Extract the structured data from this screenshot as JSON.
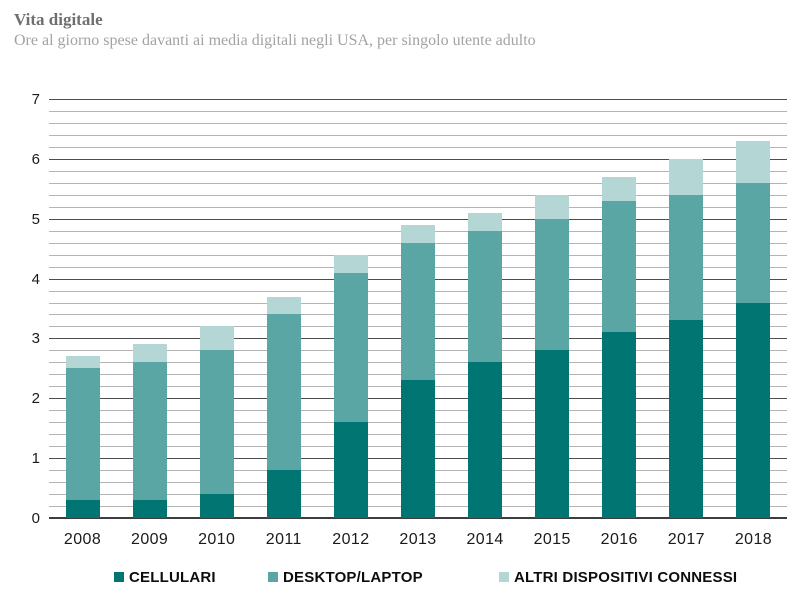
{
  "header": {
    "title": "Vita digitale",
    "subtitle": "Ore al giorno spese davanti ai media digitali negli USA, per singolo utente adulto"
  },
  "chart_data": {
    "type": "bar",
    "stacked": true,
    "title": "Vita digitale",
    "subtitle": "Ore al giorno spese davanti ai media digitali negli USA, per singolo utente adulto",
    "categories": [
      "2008",
      "2009",
      "2010",
      "2011",
      "2012",
      "2013",
      "2014",
      "2015",
      "2016",
      "2017",
      "2018"
    ],
    "series": [
      {
        "name": "CELLULARI",
        "color": "#007572",
        "values": [
          0.3,
          0.3,
          0.4,
          0.8,
          1.6,
          2.3,
          2.6,
          2.8,
          3.1,
          3.3,
          3.6
        ]
      },
      {
        "name": "DESKTOP/LAPTOP",
        "color": "#59a6a4",
        "values": [
          2.2,
          2.3,
          2.4,
          2.6,
          2.5,
          2.3,
          2.2,
          2.2,
          2.2,
          2.1,
          2.0
        ]
      },
      {
        "name": "ALTRI DISPOSITIVI CONNESSI",
        "color": "#b4d6d4",
        "values": [
          0.2,
          0.3,
          0.4,
          0.3,
          0.3,
          0.3,
          0.3,
          0.4,
          0.4,
          0.6,
          0.7
        ]
      }
    ],
    "totals": [
      2.7,
      2.9,
      3.2,
      3.7,
      4.4,
      4.9,
      5.1,
      5.4,
      5.7,
      6.0,
      6.3
    ],
    "xlabel": "",
    "ylabel": "",
    "ylim": [
      0,
      7
    ],
    "yticks": [
      "0",
      "1",
      "2",
      "3",
      "4",
      "5",
      "6",
      "7"
    ],
    "minor_grid_step": 0.2,
    "grid": true,
    "legend_position": "bottom"
  },
  "colors": {
    "grid_minor": "#b3b3b3",
    "grid_major": "#4d4d4d",
    "axis_line": "#3d3d3d",
    "title_text": "#6f6f6f",
    "subtitle_text": "#a3a3a3",
    "tick_text": "#1a1a1a",
    "legend_text": "#0d0d0d"
  }
}
